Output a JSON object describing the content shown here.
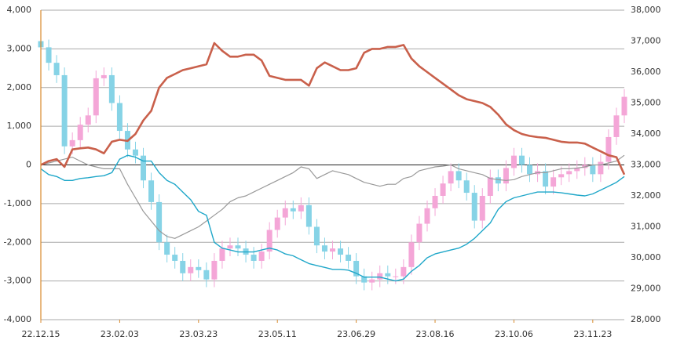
{
  "chart_data": {
    "type": "candlestick_lines",
    "categories": [
      "22.12.15",
      null,
      null,
      null,
      null,
      null,
      null,
      null,
      null,
      null,
      "23.02.03",
      null,
      null,
      null,
      null,
      null,
      null,
      null,
      null,
      null,
      "23.03.23",
      null,
      null,
      null,
      null,
      null,
      null,
      null,
      null,
      null,
      "23.05.11",
      null,
      null,
      null,
      null,
      null,
      null,
      null,
      null,
      null,
      "23.06.29",
      null,
      null,
      null,
      null,
      null,
      null,
      null,
      null,
      null,
      "23.08.16",
      null,
      null,
      null,
      null,
      null,
      null,
      null,
      null,
      null,
      "23.10.06",
      null,
      null,
      null,
      null,
      null,
      null,
      null,
      null,
      null,
      "23.11.23",
      null,
      null,
      null,
      null
    ],
    "ylim": [
      -4000,
      4000
    ],
    "yticks": [
      {
        "value": -4000,
        "label": "-4,000"
      },
      {
        "value": -3000,
        "label": "-3,000"
      },
      {
        "value": -2000,
        "label": "-2,000"
      },
      {
        "value": -1000,
        "label": "-1,000"
      },
      0,
      {
        "value": 1000,
        "label": "1,000"
      },
      {
        "value": 2000,
        "label": "2,000"
      },
      {
        "value": 3000,
        "label": "3,000"
      },
      {
        "value": 4000,
        "label": "4,000"
      }
    ],
    "y2lim": [
      28000,
      38000
    ],
    "y2ticks": [
      {
        "value": 28000,
        "label": "28,000"
      },
      {
        "value": 29000,
        "label": "29,000"
      },
      {
        "value": 30000,
        "label": "30,000"
      },
      {
        "value": 31000,
        "label": "31,000"
      },
      {
        "value": 32000,
        "label": "32,000"
      },
      {
        "value": 33000,
        "label": "33,000"
      },
      {
        "value": 34000,
        "label": "34,000"
      },
      {
        "value": 35000,
        "label": "35,000"
      },
      {
        "value": 36000,
        "label": "36,000"
      },
      {
        "value": 37000,
        "label": "37,000"
      },
      {
        "value": 38000,
        "label": "38,000"
      }
    ],
    "grid": true,
    "candles": {
      "axis": "y2",
      "up_color": "#f4a6d7",
      "down_color": "#86d3e6",
      "open": [
        37000,
        36800,
        36300,
        35900,
        33600,
        33800,
        34300,
        34600,
        35800,
        35900,
        35000,
        34100,
        33500,
        33300,
        32500,
        31800,
        30500,
        30100,
        29900,
        29500,
        29700,
        29600,
        29300,
        29900,
        30300,
        30400,
        30300,
        30100,
        29900,
        30200,
        30900,
        31300,
        31600,
        31500,
        31700,
        31000,
        30400,
        30200,
        30300,
        30100,
        29900,
        29400,
        29200,
        29300,
        29500,
        29400,
        29400,
        29700,
        30500,
        31100,
        31600,
        32000,
        32400,
        32800,
        32500,
        32100,
        31200,
        32000,
        32600,
        32400,
        32900,
        33300,
        33000,
        32700,
        32800,
        32300,
        32600,
        32700,
        32800,
        32900,
        33000,
        32700,
        33100,
        33900,
        34600
      ],
      "high": [
        37250,
        37050,
        36550,
        36150,
        34050,
        34550,
        34850,
        36050,
        36150,
        36150,
        35250,
        34350,
        33750,
        33550,
        32750,
        32050,
        30750,
        30350,
        30150,
        29950,
        29950,
        29850,
        30150,
        30550,
        30650,
        30650,
        30550,
        30350,
        30450,
        31150,
        31550,
        31850,
        31850,
        31950,
        31950,
        31250,
        30650,
        30550,
        30550,
        30350,
        30150,
        29650,
        29550,
        29750,
        29750,
        29650,
        29950,
        30750,
        31350,
        31850,
        32250,
        32650,
        33050,
        33050,
        32750,
        32350,
        32250,
        32850,
        32850,
        33150,
        33550,
        33550,
        33250,
        33050,
        33050,
        32850,
        32950,
        33050,
        33150,
        33250,
        33250,
        33350,
        34150,
        34850,
        35450
      ],
      "low": [
        36550,
        36050,
        35650,
        33350,
        33350,
        33550,
        34050,
        34350,
        35550,
        34750,
        33850,
        33250,
        33050,
        32250,
        31550,
        30250,
        29850,
        29650,
        29250,
        29250,
        29350,
        29050,
        29050,
        29650,
        30050,
        30050,
        29850,
        29650,
        29650,
        29950,
        30650,
        31050,
        31250,
        31250,
        30750,
        30150,
        29950,
        29950,
        29850,
        29650,
        29150,
        28950,
        28950,
        29050,
        29150,
        29150,
        29150,
        29450,
        30250,
        30850,
        31350,
        31750,
        32150,
        32250,
        31850,
        30950,
        30950,
        31750,
        32150,
        32150,
        32650,
        32750,
        32450,
        32450,
        32050,
        32050,
        32350,
        32450,
        32550,
        32650,
        32450,
        32450,
        32850,
        33650,
        34350
      ],
      "close": [
        36800,
        36300,
        35900,
        33600,
        33800,
        34300,
        34600,
        35800,
        35900,
        35000,
        34100,
        33500,
        33300,
        32500,
        31800,
        30500,
        30100,
        29900,
        29500,
        29700,
        29600,
        29300,
        29900,
        30300,
        30400,
        30300,
        30100,
        29900,
        30200,
        30900,
        31300,
        31600,
        31500,
        31700,
        31000,
        30400,
        30200,
        30300,
        30100,
        29900,
        29400,
        29200,
        29300,
        29500,
        29400,
        29400,
        29700,
        30500,
        31100,
        31600,
        32000,
        32400,
        32800,
        32500,
        32100,
        31200,
        32000,
        32600,
        32400,
        32900,
        33300,
        33000,
        32700,
        32800,
        32300,
        32600,
        32700,
        32800,
        32900,
        33000,
        32700,
        33100,
        33900,
        34600,
        35200
      ]
    },
    "series": [
      {
        "color": "#999999",
        "width": 1.2,
        "values": [
          0,
          50,
          100,
          150,
          200,
          100,
          0,
          -50,
          -100,
          -100,
          -100,
          -500,
          -850,
          -1200,
          -1450,
          -1700,
          -1850,
          -1900,
          -1800,
          -1700,
          -1600,
          -1450,
          -1300,
          -1150,
          -950,
          -850,
          -800,
          -700,
          -600,
          -500,
          -400,
          -300,
          -200,
          -50,
          -100,
          -350,
          -250,
          -150,
          -200,
          -250,
          -350,
          -450,
          -500,
          -550,
          -500,
          -500,
          -350,
          -300,
          -150,
          -100,
          -50,
          -30,
          0,
          -100,
          -150,
          -200,
          -250,
          -350,
          -380,
          -400,
          -380,
          -300,
          -250,
          -200,
          -200,
          -150,
          -100,
          -100,
          -80,
          -50,
          0,
          0,
          50,
          100,
          250
        ]
      },
      {
        "color": "#1fa7c9",
        "width": 1.4,
        "values": [
          -100,
          -250,
          -300,
          -400,
          -400,
          -350,
          -330,
          -300,
          -280,
          -200,
          150,
          250,
          200,
          100,
          100,
          -200,
          -400,
          -500,
          -700,
          -900,
          -1200,
          -1300,
          -2000,
          -2150,
          -2200,
          -2250,
          -2250,
          -2250,
          -2200,
          -2150,
          -2200,
          -2300,
          -2350,
          -2450,
          -2550,
          -2600,
          -2650,
          -2700,
          -2700,
          -2720,
          -2800,
          -2900,
          -2900,
          -2900,
          -2950,
          -3000,
          -2950,
          -2750,
          -2600,
          -2400,
          -2300,
          -2250,
          -2200,
          -2150,
          -2050,
          -1900,
          -1700,
          -1500,
          -1150,
          -950,
          -850,
          -800,
          -750,
          -700,
          -700,
          -700,
          -720,
          -750,
          -780,
          -800,
          -750,
          -650,
          -550,
          -450,
          -300
        ]
      },
      {
        "color": "#c9604b",
        "width": 2.6,
        "values": [
          0,
          100,
          150,
          -50,
          400,
          430,
          450,
          400,
          300,
          600,
          650,
          620,
          800,
          1150,
          1400,
          2000,
          2250,
          2350,
          2450,
          2500,
          2550,
          2600,
          3150,
          2950,
          2800,
          2800,
          2850,
          2850,
          2700,
          2300,
          2250,
          2200,
          2200,
          2200,
          2050,
          2500,
          2650,
          2550,
          2450,
          2450,
          2500,
          2900,
          3000,
          3000,
          3050,
          3050,
          3100,
          2750,
          2550,
          2400,
          2250,
          2100,
          1950,
          1800,
          1700,
          1650,
          1600,
          1500,
          1300,
          1050,
          900,
          800,
          750,
          720,
          700,
          650,
          600,
          580,
          580,
          550,
          450,
          350,
          250,
          200,
          -250
        ]
      }
    ]
  }
}
